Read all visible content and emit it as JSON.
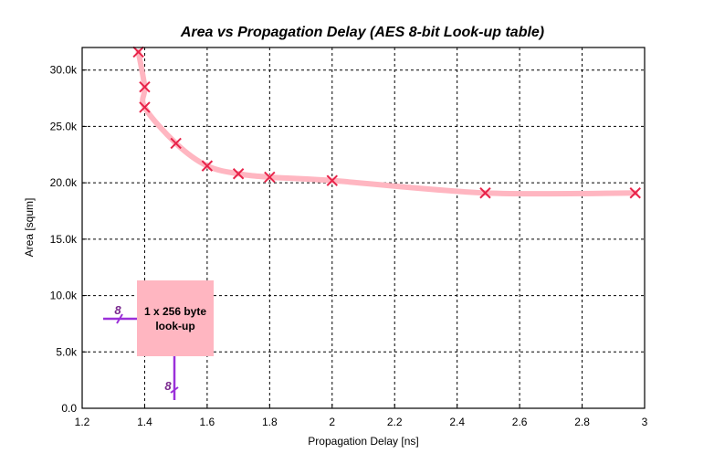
{
  "chart_data": {
    "type": "line",
    "title": "Area vs Propagation Delay (AES 8-bit Look-up table)",
    "xlabel": "Propagation Delay [ns]",
    "ylabel": "Area [squm]",
    "xlim": [
      1.2,
      3.0
    ],
    "ylim": [
      0,
      32000
    ],
    "x_ticks": [
      1.2,
      1.4,
      1.6,
      1.8,
      2.0,
      2.2,
      2.4,
      2.6,
      2.8,
      3.0
    ],
    "x_tick_labels": [
      "1.2",
      "1.4",
      "1.6",
      "1.8",
      "2",
      "2.2",
      "2.4",
      "2.6",
      "2.8",
      "3"
    ],
    "y_ticks": [
      0,
      5000,
      10000,
      15000,
      20000,
      25000,
      30000
    ],
    "y_tick_labels": [
      "0.0",
      "5.0k",
      "10.0k",
      "15.0k",
      "20.0k",
      "25.0k",
      "30.0k"
    ],
    "grid": true,
    "series": [
      {
        "name": "",
        "line_color": "#ffb6c1",
        "marker_color": "#e8244a",
        "marker": "x",
        "x": [
          1.38,
          1.4,
          1.4,
          1.5,
          1.6,
          1.7,
          1.8,
          2.0,
          2.49,
          2.97
        ],
        "y": [
          31600,
          28500,
          26700,
          23500,
          21500,
          20800,
          20500,
          20200,
          19100,
          19100
        ]
      }
    ],
    "inset": {
      "label_line1": "1 x 256 byte",
      "label_line2": "look-up",
      "input_bus_width": "8",
      "output_bus_width": "8",
      "box_color": "#ffb6c1",
      "bus_color": "#9b30d9"
    }
  }
}
